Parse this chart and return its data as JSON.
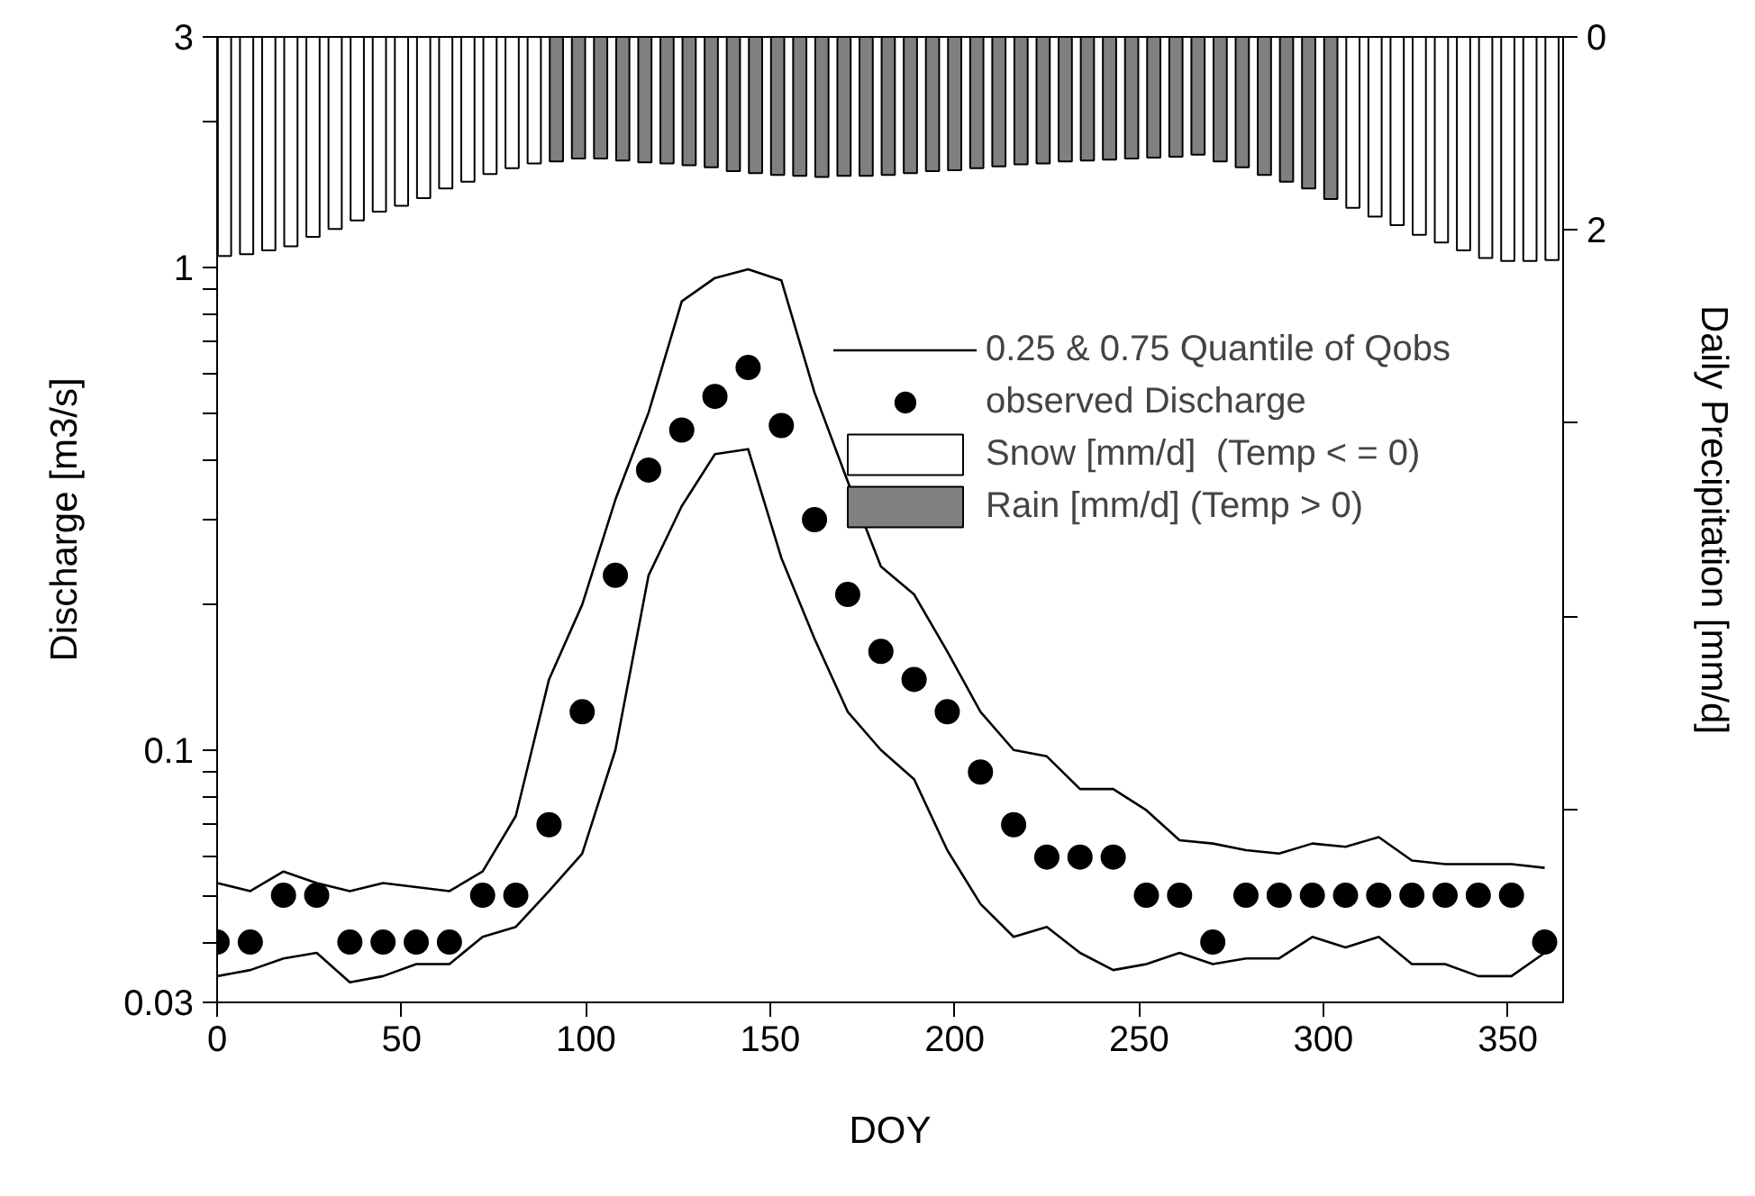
{
  "chart_data": {
    "type": "line",
    "xlabel": "DOY",
    "ylabel": "Discharge [m3/s]",
    "y2label": "Daily Precipitation [mm/d]",
    "xlim": [
      0,
      365
    ],
    "xticks": [
      0,
      50,
      100,
      150,
      200,
      250,
      300,
      350
    ],
    "ylim": [
      0.03,
      3
    ],
    "log": "y",
    "yticks": [
      0.03,
      {
        "value": 0.04,
        "label": null
      },
      {
        "value": 0.05,
        "label": null
      },
      {
        "value": 0.06,
        "label": null
      },
      {
        "value": 0.07,
        "label": null
      },
      {
        "value": 0.08,
        "label": null
      },
      {
        "value": 0.09,
        "label": null
      },
      0.1,
      {
        "value": 0.2,
        "label": null
      },
      {
        "value": 0.3,
        "label": null
      },
      {
        "value": 0.4,
        "label": null
      },
      {
        "value": 0.5,
        "label": null
      },
      {
        "value": 0.6,
        "label": null
      },
      {
        "value": 0.7,
        "label": null
      },
      {
        "value": 0.8,
        "label": null
      },
      {
        "value": 0.9,
        "label": null
      },
      1,
      {
        "value": 2,
        "label": null
      },
      3
    ],
    "y2lim": [
      10,
      0
    ],
    "y2ticks": [
      0,
      2,
      {
        "value": 4,
        "label": null
      },
      {
        "value": 6,
        "label": null
      },
      {
        "value": 8,
        "label": null
      }
    ],
    "grid": false,
    "legend": "top right",
    "x": [
      2,
      8,
      14,
      20,
      26,
      32,
      38,
      44,
      50,
      56,
      62,
      68,
      74,
      80,
      86,
      92,
      98,
      104,
      110,
      116,
      122,
      128,
      134,
      140,
      146,
      152,
      158,
      164,
      170,
      176,
      182,
      188,
      194,
      200,
      206,
      212,
      218,
      224,
      230,
      236,
      242,
      248,
      254,
      260,
      266,
      272,
      278,
      284,
      290,
      296,
      302,
      308,
      314,
      320,
      326,
      332,
      338,
      344,
      350,
      356,
      362
    ],
    "series": [
      {
        "type": "bar",
        "axis": "y2",
        "name": "Snow [mm/d]  (Temp < = 0)",
        "color": "#ffffff",
        "values": [
          2.27,
          2.25,
          2.21,
          2.17,
          2.07,
          1.99,
          1.9,
          1.81,
          1.75,
          1.67,
          1.57,
          1.5,
          1.42,
          1.36,
          1.31,
          null,
          null,
          null,
          null,
          null,
          null,
          null,
          null,
          null,
          null,
          null,
          null,
          null,
          null,
          null,
          null,
          null,
          null,
          null,
          null,
          null,
          null,
          null,
          null,
          null,
          null,
          null,
          null,
          null,
          null,
          null,
          null,
          null,
          null,
          null,
          null,
          1.77,
          1.86,
          1.95,
          2.05,
          2.13,
          2.21,
          2.29,
          2.32,
          2.32,
          2.31
        ]
      },
      {
        "type": "bar",
        "axis": "y2",
        "name": "Rain [mm/d] (Temp > 0)",
        "color": "#808080",
        "values": [
          null,
          null,
          null,
          null,
          null,
          null,
          null,
          null,
          null,
          null,
          null,
          null,
          null,
          null,
          null,
          1.29,
          1.26,
          1.26,
          1.28,
          1.3,
          1.31,
          1.33,
          1.35,
          1.39,
          1.41,
          1.43,
          1.44,
          1.45,
          1.44,
          1.44,
          1.43,
          1.41,
          1.39,
          1.38,
          1.36,
          1.34,
          1.32,
          1.31,
          1.29,
          1.28,
          1.27,
          1.26,
          1.25,
          1.24,
          1.22,
          1.29,
          1.35,
          1.43,
          1.5,
          1.57,
          1.68,
          null,
          null,
          null,
          null,
          null,
          null,
          null,
          null,
          null,
          null
        ]
      },
      {
        "name": "0.25 & 0.75 Quantile of Qobs",
        "color": "#000000",
        "marker": "none",
        "line_style": "solid",
        "x": [
          0,
          9,
          18,
          27,
          36,
          45,
          54,
          63,
          72,
          81,
          90,
          99,
          108,
          117,
          126,
          135,
          144,
          153,
          162,
          171,
          180,
          189,
          198,
          207,
          216,
          225,
          234,
          243,
          252,
          261,
          270,
          279,
          288,
          297,
          306,
          315,
          324,
          333,
          342,
          351,
          360
        ],
        "values": [
          0.034,
          0.035,
          0.037,
          0.038,
          0.033,
          0.034,
          0.036,
          0.036,
          0.041,
          0.043,
          0.051,
          0.061,
          0.1,
          0.23,
          0.32,
          0.41,
          0.42,
          0.25,
          0.17,
          0.12,
          0.1,
          0.087,
          0.062,
          0.048,
          0.041,
          0.043,
          0.038,
          0.035,
          0.036,
          0.038,
          0.036,
          0.037,
          0.037,
          0.041,
          0.039,
          0.041,
          0.036,
          0.036,
          0.034,
          0.034,
          0.038
        ]
      },
      {
        "color": "#000000",
        "marker": "none",
        "line_style": "solid",
        "x": [
          0,
          9,
          18,
          27,
          36,
          45,
          54,
          63,
          72,
          81,
          90,
          99,
          108,
          117,
          126,
          135,
          144,
          153,
          162,
          171,
          180,
          189,
          198,
          207,
          216,
          225,
          234,
          243,
          252,
          261,
          270,
          279,
          288,
          297,
          306,
          315,
          324,
          333,
          342,
          351,
          360
        ],
        "values": [
          0.053,
          0.051,
          0.056,
          0.053,
          0.051,
          0.053,
          0.052,
          0.051,
          0.056,
          0.073,
          0.14,
          0.2,
          0.33,
          0.5,
          0.85,
          0.95,
          0.99,
          0.94,
          0.55,
          0.36,
          0.24,
          0.21,
          0.16,
          0.12,
          0.1,
          0.097,
          0.083,
          0.083,
          0.075,
          0.065,
          0.064,
          0.062,
          0.061,
          0.064,
          0.063,
          0.066,
          0.059,
          0.058,
          0.058,
          0.058,
          0.057
        ]
      },
      {
        "type": "scatter",
        "name": "observed Discharge",
        "color": "#000000",
        "marker": "circle",
        "x": [
          0,
          9,
          18,
          27,
          36,
          45,
          54,
          63,
          72,
          81,
          90,
          99,
          108,
          117,
          126,
          135,
          144,
          153,
          162,
          171,
          180,
          189,
          198,
          207,
          216,
          225,
          234,
          243,
          252,
          261,
          270,
          279,
          288,
          297,
          306,
          315,
          324,
          333,
          342,
          351,
          360
        ],
        "values": [
          0.04,
          0.04,
          0.05,
          0.05,
          0.04,
          0.04,
          0.04,
          0.04,
          0.05,
          0.05,
          0.07,
          0.12,
          0.23,
          0.38,
          0.46,
          0.54,
          0.62,
          0.47,
          0.3,
          0.21,
          0.16,
          0.14,
          0.12,
          0.09,
          0.07,
          0.06,
          0.06,
          0.06,
          0.05,
          0.05,
          0.04,
          0.05,
          0.05,
          0.05,
          0.05,
          0.05,
          0.05,
          0.05,
          0.05,
          0.05,
          0.04
        ]
      }
    ]
  }
}
